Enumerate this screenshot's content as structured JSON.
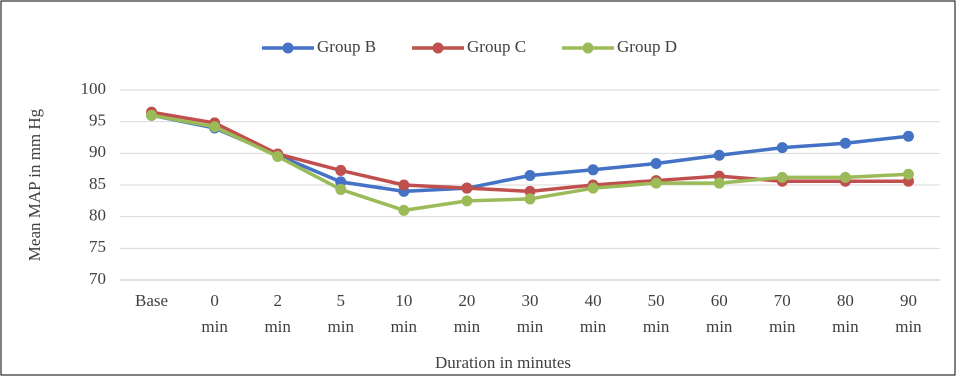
{
  "chart_data": {
    "type": "line",
    "y_label": "Mean MAP in mm Hg",
    "x_label": "Duration in minutes",
    "categories": [
      "Base",
      "0\nmin",
      "2\nmin",
      "5\nmin",
      "10\nmin",
      "20\nmin",
      "30\nmin",
      "40\nmin",
      "50\nmin",
      "60\nmin",
      "70\nmin",
      "80\nmin",
      "90\nmin"
    ],
    "series": [
      {
        "name": "Group B",
        "color": "#4472c4",
        "values": [
          96,
          94,
          89.7,
          85.5,
          84,
          84.5,
          86.5,
          87.4,
          88.4,
          89.7,
          90.9,
          91.6,
          92.7
        ]
      },
      {
        "name": "Group C",
        "color": "#c0504d",
        "values": [
          96.5,
          94.8,
          89.9,
          87.3,
          85,
          84.5,
          84,
          85,
          85.7,
          86.4,
          85.6,
          85.6,
          85.6
        ]
      },
      {
        "name": "Group D",
        "color": "#9bbb59",
        "values": [
          96,
          94.2,
          89.5,
          84.3,
          81,
          82.5,
          82.8,
          84.5,
          85.3,
          85.3,
          86.2,
          86.2,
          86.7
        ]
      }
    ],
    "ylim": [
      70,
      100
    ],
    "yticks": [
      70,
      75,
      80,
      85,
      90,
      95,
      100
    ],
    "grid": true,
    "legend": "top"
  }
}
